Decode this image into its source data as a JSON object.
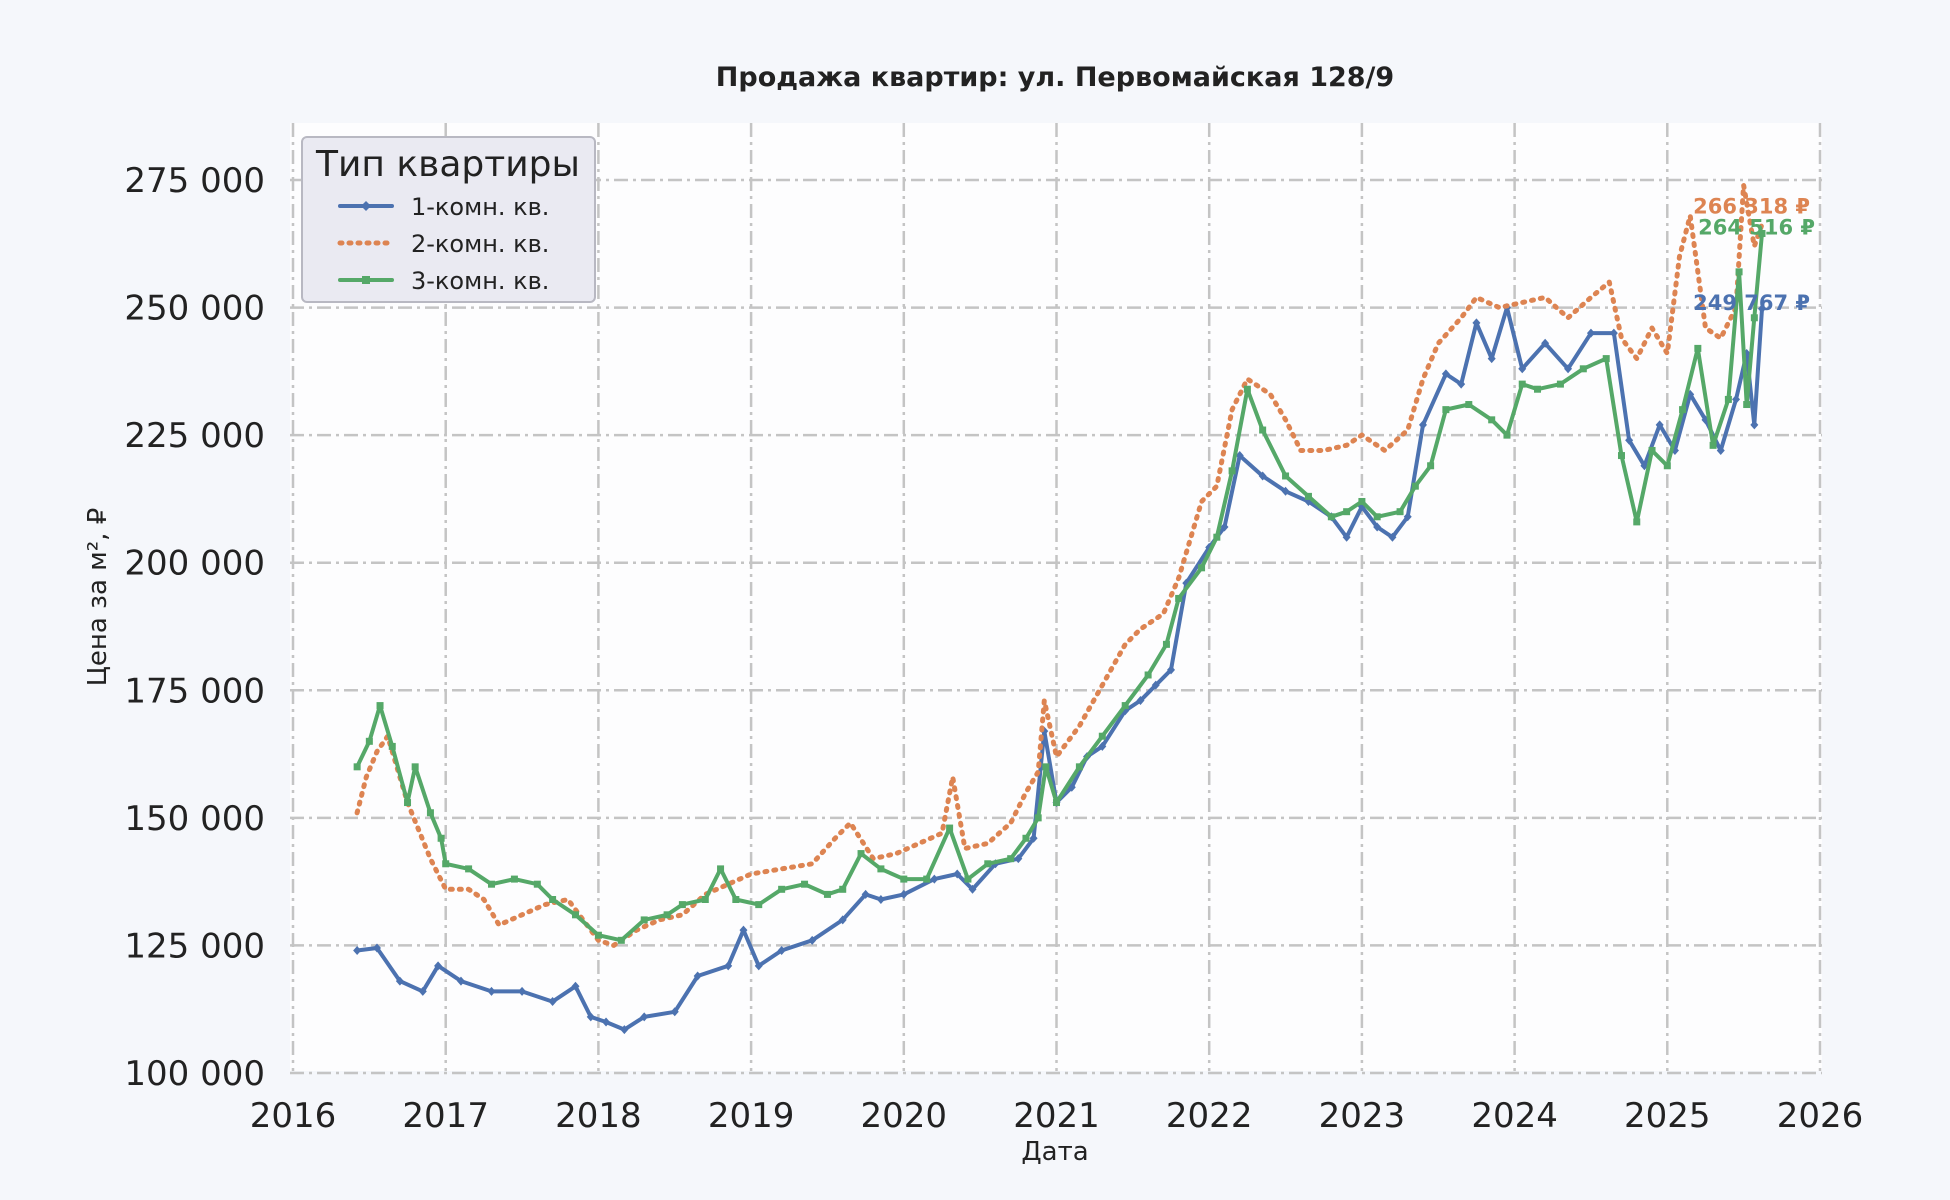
{
  "chart_data": {
    "type": "line",
    "title": "Продажа квартир: ул. Первомайская 128/9",
    "xlabel": "Дата",
    "ylabel": "Цена за м², ₽",
    "xlim": [
      2016,
      2026
    ],
    "ylim": [
      100000,
      286000
    ],
    "xticks": [
      "2016",
      "2017",
      "2018",
      "2019",
      "2020",
      "2021",
      "2022",
      "2023",
      "2024",
      "2025",
      "2026"
    ],
    "yticks": [
      "100 000",
      "125 000",
      "150 000",
      "175 000",
      "200 000",
      "225 000",
      "250 000",
      "275 000"
    ],
    "grid": true,
    "legend": {
      "title": "Тип квартиры",
      "position": "top-left"
    },
    "series": [
      {
        "name": "1-комн. кв.",
        "color": "#4c72b0",
        "end_label": "249 767 ₽",
        "points": [
          [
            2016.42,
            124000
          ],
          [
            2016.55,
            124500
          ],
          [
            2016.7,
            118000
          ],
          [
            2016.85,
            116000
          ],
          [
            2016.95,
            121000
          ],
          [
            2017.1,
            118000
          ],
          [
            2017.3,
            116000
          ],
          [
            2017.5,
            116000
          ],
          [
            2017.7,
            114000
          ],
          [
            2017.85,
            117000
          ],
          [
            2017.95,
            111000
          ],
          [
            2018.05,
            110000
          ],
          [
            2018.17,
            108500
          ],
          [
            2018.3,
            111000
          ],
          [
            2018.5,
            112000
          ],
          [
            2018.65,
            119000
          ],
          [
            2018.85,
            121000
          ],
          [
            2018.95,
            128000
          ],
          [
            2019.05,
            121000
          ],
          [
            2019.2,
            124000
          ],
          [
            2019.4,
            126000
          ],
          [
            2019.6,
            130000
          ],
          [
            2019.75,
            135000
          ],
          [
            2019.85,
            134000
          ],
          [
            2020.0,
            135000
          ],
          [
            2020.2,
            138000
          ],
          [
            2020.35,
            139000
          ],
          [
            2020.45,
            136000
          ],
          [
            2020.6,
            141000
          ],
          [
            2020.75,
            142000
          ],
          [
            2020.85,
            146000
          ],
          [
            2020.92,
            167000
          ],
          [
            2021.0,
            153000
          ],
          [
            2021.1,
            156000
          ],
          [
            2021.2,
            162000
          ],
          [
            2021.3,
            164000
          ],
          [
            2021.45,
            171000
          ],
          [
            2021.55,
            173000
          ],
          [
            2021.65,
            176000
          ],
          [
            2021.75,
            179000
          ],
          [
            2021.85,
            196000
          ],
          [
            2022.0,
            203000
          ],
          [
            2022.1,
            207000
          ],
          [
            2022.2,
            221000
          ],
          [
            2022.35,
            217000
          ],
          [
            2022.5,
            214000
          ],
          [
            2022.65,
            212000
          ],
          [
            2022.8,
            209000
          ],
          [
            2022.9,
            205000
          ],
          [
            2023.0,
            211000
          ],
          [
            2023.1,
            207000
          ],
          [
            2023.2,
            205000
          ],
          [
            2023.3,
            209000
          ],
          [
            2023.4,
            227000
          ],
          [
            2023.55,
            237000
          ],
          [
            2023.65,
            235000
          ],
          [
            2023.75,
            247000
          ],
          [
            2023.85,
            240000
          ],
          [
            2023.95,
            250000
          ],
          [
            2024.05,
            238000
          ],
          [
            2024.2,
            243000
          ],
          [
            2024.35,
            238000
          ],
          [
            2024.5,
            245000
          ],
          [
            2024.65,
            245000
          ],
          [
            2024.75,
            224000
          ],
          [
            2024.85,
            219000
          ],
          [
            2024.95,
            227000
          ],
          [
            2025.05,
            222000
          ],
          [
            2025.15,
            233000
          ],
          [
            2025.25,
            228000
          ],
          [
            2025.35,
            222000
          ],
          [
            2025.45,
            232000
          ],
          [
            2025.52,
            241000
          ],
          [
            2025.57,
            227000
          ],
          [
            2025.62,
            249767
          ]
        ]
      },
      {
        "name": "2-комн. кв.",
        "color": "#dd8452",
        "end_label": "266 318 ₽",
        "points": [
          [
            2016.42,
            151000
          ],
          [
            2016.48,
            158000
          ],
          [
            2016.55,
            163000
          ],
          [
            2016.62,
            166000
          ],
          [
            2016.75,
            153000
          ],
          [
            2016.9,
            142000
          ],
          [
            2017.0,
            136000
          ],
          [
            2017.15,
            136000
          ],
          [
            2017.25,
            134000
          ],
          [
            2017.35,
            129000
          ],
          [
            2017.5,
            131000
          ],
          [
            2017.65,
            133000
          ],
          [
            2017.8,
            134000
          ],
          [
            2017.9,
            130000
          ],
          [
            2018.0,
            126000
          ],
          [
            2018.1,
            125000
          ],
          [
            2018.25,
            128000
          ],
          [
            2018.4,
            130000
          ],
          [
            2018.55,
            131000
          ],
          [
            2018.7,
            135000
          ],
          [
            2018.85,
            137000
          ],
          [
            2019.0,
            139000
          ],
          [
            2019.2,
            140000
          ],
          [
            2019.4,
            141000
          ],
          [
            2019.55,
            146000
          ],
          [
            2019.65,
            149000
          ],
          [
            2019.8,
            142000
          ],
          [
            2019.95,
            143000
          ],
          [
            2020.1,
            145000
          ],
          [
            2020.25,
            147000
          ],
          [
            2020.32,
            158000
          ],
          [
            2020.4,
            144000
          ],
          [
            2020.55,
            145000
          ],
          [
            2020.7,
            149000
          ],
          [
            2020.8,
            155000
          ],
          [
            2020.88,
            159000
          ],
          [
            2020.92,
            173000
          ],
          [
            2021.0,
            162000
          ],
          [
            2021.15,
            168000
          ],
          [
            2021.3,
            176000
          ],
          [
            2021.45,
            184000
          ],
          [
            2021.55,
            187000
          ],
          [
            2021.7,
            190000
          ],
          [
            2021.8,
            197000
          ],
          [
            2021.95,
            212000
          ],
          [
            2022.05,
            215000
          ],
          [
            2022.15,
            230000
          ],
          [
            2022.25,
            236000
          ],
          [
            2022.4,
            233000
          ],
          [
            2022.5,
            228000
          ],
          [
            2022.6,
            222000
          ],
          [
            2022.75,
            222000
          ],
          [
            2022.9,
            223000
          ],
          [
            2023.0,
            225000
          ],
          [
            2023.15,
            222000
          ],
          [
            2023.3,
            226000
          ],
          [
            2023.4,
            236000
          ],
          [
            2023.5,
            243000
          ],
          [
            2023.65,
            248000
          ],
          [
            2023.75,
            252000
          ],
          [
            2023.9,
            250000
          ],
          [
            2024.05,
            251000
          ],
          [
            2024.2,
            252000
          ],
          [
            2024.35,
            248000
          ],
          [
            2024.5,
            252000
          ],
          [
            2024.62,
            255000
          ],
          [
            2024.7,
            244000
          ],
          [
            2024.8,
            240000
          ],
          [
            2024.9,
            246000
          ],
          [
            2025.0,
            241000
          ],
          [
            2025.08,
            260000
          ],
          [
            2025.15,
            268000
          ],
          [
            2025.25,
            246000
          ],
          [
            2025.35,
            244000
          ],
          [
            2025.45,
            250000
          ],
          [
            2025.5,
            274000
          ],
          [
            2025.57,
            262000
          ],
          [
            2025.62,
            266318
          ]
        ]
      },
      {
        "name": "3-комн. кв.",
        "color": "#55a868",
        "end_label": "264 516 ₽",
        "points": [
          [
            2016.42,
            160000
          ],
          [
            2016.5,
            165000
          ],
          [
            2016.57,
            172000
          ],
          [
            2016.65,
            164000
          ],
          [
            2016.75,
            153000
          ],
          [
            2016.8,
            160000
          ],
          [
            2016.9,
            151000
          ],
          [
            2016.97,
            146000
          ],
          [
            2017.0,
            141000
          ],
          [
            2017.15,
            140000
          ],
          [
            2017.3,
            137000
          ],
          [
            2017.45,
            138000
          ],
          [
            2017.6,
            137000
          ],
          [
            2017.7,
            134000
          ],
          [
            2017.85,
            131000
          ],
          [
            2018.0,
            127000
          ],
          [
            2018.15,
            126000
          ],
          [
            2018.3,
            130000
          ],
          [
            2018.45,
            131000
          ],
          [
            2018.55,
            133000
          ],
          [
            2018.7,
            134000
          ],
          [
            2018.8,
            140000
          ],
          [
            2018.9,
            134000
          ],
          [
            2019.05,
            133000
          ],
          [
            2019.2,
            136000
          ],
          [
            2019.35,
            137000
          ],
          [
            2019.5,
            135000
          ],
          [
            2019.6,
            136000
          ],
          [
            2019.72,
            143000
          ],
          [
            2019.85,
            140000
          ],
          [
            2020.0,
            138000
          ],
          [
            2020.15,
            138000
          ],
          [
            2020.3,
            148000
          ],
          [
            2020.42,
            138000
          ],
          [
            2020.55,
            141000
          ],
          [
            2020.7,
            142000
          ],
          [
            2020.8,
            146000
          ],
          [
            2020.88,
            150000
          ],
          [
            2020.93,
            160000
          ],
          [
            2021.0,
            153000
          ],
          [
            2021.15,
            160000
          ],
          [
            2021.3,
            166000
          ],
          [
            2021.45,
            172000
          ],
          [
            2021.6,
            178000
          ],
          [
            2021.72,
            184000
          ],
          [
            2021.8,
            193000
          ],
          [
            2021.95,
            199000
          ],
          [
            2022.05,
            205000
          ],
          [
            2022.15,
            218000
          ],
          [
            2022.25,
            234000
          ],
          [
            2022.35,
            226000
          ],
          [
            2022.5,
            217000
          ],
          [
            2022.65,
            213000
          ],
          [
            2022.8,
            209000
          ],
          [
            2022.9,
            210000
          ],
          [
            2023.0,
            212000
          ],
          [
            2023.1,
            209000
          ],
          [
            2023.25,
            210000
          ],
          [
            2023.35,
            215000
          ],
          [
            2023.45,
            219000
          ],
          [
            2023.55,
            230000
          ],
          [
            2023.7,
            231000
          ],
          [
            2023.85,
            228000
          ],
          [
            2023.95,
            225000
          ],
          [
            2024.05,
            235000
          ],
          [
            2024.15,
            234000
          ],
          [
            2024.3,
            235000
          ],
          [
            2024.45,
            238000
          ],
          [
            2024.6,
            240000
          ],
          [
            2024.7,
            221000
          ],
          [
            2024.8,
            208000
          ],
          [
            2024.9,
            222000
          ],
          [
            2025.0,
            219000
          ],
          [
            2025.1,
            230000
          ],
          [
            2025.2,
            242000
          ],
          [
            2025.3,
            223000
          ],
          [
            2025.4,
            232000
          ],
          [
            2025.47,
            257000
          ],
          [
            2025.52,
            231000
          ],
          [
            2025.57,
            248000
          ],
          [
            2025.62,
            264516
          ]
        ]
      }
    ]
  }
}
